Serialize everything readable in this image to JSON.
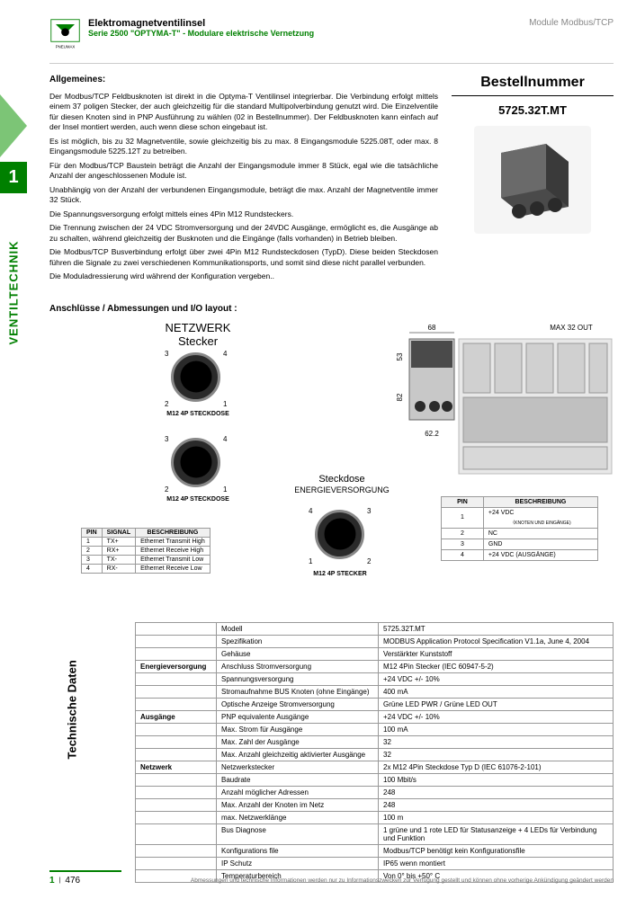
{
  "header": {
    "title": "Elektromagnetventilinsel",
    "subtitle": "Serie 2500 \"OPTYMA-T\" - Modulare elektrische Vernetzung",
    "right": "Module Modbus/TCP",
    "logo_text": "PNEUMAX"
  },
  "side": {
    "number": "1",
    "label": "VENTILTECHNIK"
  },
  "general": {
    "title": "Allgemeines:",
    "p1": "Der Modbus/TCP Feldbusknoten ist direkt in die Optyma-T Ventilinsel integrierbar. Die Verbindung erfolgt mittels einem 37 poligen Stecker, der auch gleichzeitig für die standard Multipolverbindung genutzt wird. Die Einzelventile für diesen Knoten sind in PNP Ausführung zu wählen (02 in Bestellnummer). Der Feldbusknoten kann einfach auf der Insel montiert werden, auch wenn diese schon eingebaut ist.",
    "p2": "Es ist möglich, bis zu 32 Magnetventile, sowie gleichzeitig bis zu max. 8 Eingangsmodule 5225.08T, oder max. 8 Eingangsmodule 5225.12T zu betreiben.",
    "p3": "Für den Modbus/TCP Baustein beträgt die Anzahl der Eingangsmodule immer 8 Stück, egal wie die tatsächliche Anzahl der angeschlossenen Module ist.",
    "p4": "Unabhängig von der Anzahl der verbundenen Eingangsmodule, beträgt die max. Anzahl der Magnetventile immer 32 Stück.",
    "p5": "Die Spannungsversorgung erfolgt mittels eines 4Pin M12 Rundsteckers.",
    "p6": "Die Trennung zwischen der 24 VDC Stromversorgung und der 24VDC Ausgänge, ermöglicht es, die Ausgänge ab zu schalten, während gleichzeitig der Busknoten und die Eingänge (falls vorhanden) in Betrieb bleiben.",
    "p7": "Die Modbus/TCP Busverbindung erfolgt über zwei 4Pin M12 Rundsteckdosen (TypD). Diese beiden Steckdosen führen die Signale zu zwei verschiedenen Kommunikationsports, und somit sind diese nicht parallel verbunden.",
    "p8": "Die Moduladressierung wird während der Konfiguration vergeben.."
  },
  "order": {
    "title": "Bestellnummer",
    "number": "5725.32T.MT"
  },
  "connections": {
    "title": "Anschlüsse / Abmessungen und I/O layout :",
    "network_label1": "NETZWERK",
    "network_label2": "Stecker",
    "conn_label": "M12 4P STECKDOSE",
    "socket_label1": "Steckdose",
    "socket_label2": "ENERGIEVERSORGUNG",
    "stecker_label": "M12 4P STECKER",
    "max_out": "MAX 32 OUT",
    "dim_68": "68",
    "dim_53": "53",
    "dim_82": "82",
    "dim_622": "62.2"
  },
  "signal_table": {
    "headers": [
      "PIN",
      "SIGNAL",
      "BESCHREIBUNG"
    ],
    "rows": [
      [
        "1",
        "TX+",
        "Ethernet Transmit High"
      ],
      [
        "2",
        "RX+",
        "Ethernet Receive High"
      ],
      [
        "3",
        "TX-",
        "Ethernet Transmit Low"
      ],
      [
        "4",
        "RX-",
        "Ethernet Receive Low"
      ]
    ]
  },
  "pin_table": {
    "headers": [
      "PIN",
      "BESCHREIBUNG"
    ],
    "rows": [
      [
        "1",
        "+24 VDC"
      ],
      [
        "",
        "（KNOTEN UND EINGÄNGE)"
      ],
      [
        "2",
        "NC"
      ],
      [
        "3",
        "GND"
      ],
      [
        "4",
        "+24 VDC (AUSGÄNGE)"
      ]
    ]
  },
  "tech": {
    "label": "Technische Daten",
    "rows": [
      [
        "",
        "Modell",
        "5725.32T.MT"
      ],
      [
        "",
        "Spezifikation",
        "MODBUS Application Protocol Specification V1.1a, June 4, 2004"
      ],
      [
        "",
        "Gehäuse",
        "Verstärkter Kunststoff"
      ],
      [
        "Energieversorgung",
        "Anschluss Stromversorgung",
        "M12 4Pin Stecker (IEC 60947-5-2)"
      ],
      [
        "",
        "Spannungsversorgung",
        "+24 VDC +/- 10%"
      ],
      [
        "",
        "Stromaufnahme BUS Knoten (ohne Eingänge)",
        "400 mA"
      ],
      [
        "",
        "Optische Anzeige Stromversorgung",
        "Grüne LED PWR / Grüne LED OUT"
      ],
      [
        "Ausgänge",
        "PNP equivalente Ausgänge",
        "+24 VDC +/- 10%"
      ],
      [
        "",
        "Max. Strom für Ausgänge",
        "100 mA"
      ],
      [
        "",
        "Max. Zahl der Ausgänge",
        "32"
      ],
      [
        "",
        "Max. Anzahl gleichzeitig aktivierter Ausgänge",
        "32"
      ],
      [
        "Netzwerk",
        "Netzwerkstecker",
        "2x M12 4Pin Steckdose Typ D (IEC 61076-2-101)"
      ],
      [
        "",
        "Baudrate",
        "100 Mbit/s"
      ],
      [
        "",
        "Anzahl möglicher Adressen",
        "248"
      ],
      [
        "",
        "Max. Anzahl der Knoten im Netz",
        "248"
      ],
      [
        "",
        "max. Netzwerklänge",
        "100 m"
      ],
      [
        "",
        "Bus Diagnose",
        "1 grüne und 1 rote LED für Statusanzeige + 4 LEDs für Verbindung und Funktion"
      ],
      [
        "",
        "Konfigurations file",
        "Modbus/TCP benötigt kein Konfigurationsfile"
      ],
      [
        "",
        "IP Schutz",
        "IP65 wenn montiert"
      ],
      [
        "",
        "Temperaturbereich",
        "Von 0° bis +50° C"
      ]
    ]
  },
  "footer": {
    "chapter": "1",
    "page": "476",
    "disclaimer": "Abmessungen und technische Informationen werden nur zu Informationszwecken zur Verfügung gestellt und können ohne vorherige Ankündigung geändert werden"
  }
}
